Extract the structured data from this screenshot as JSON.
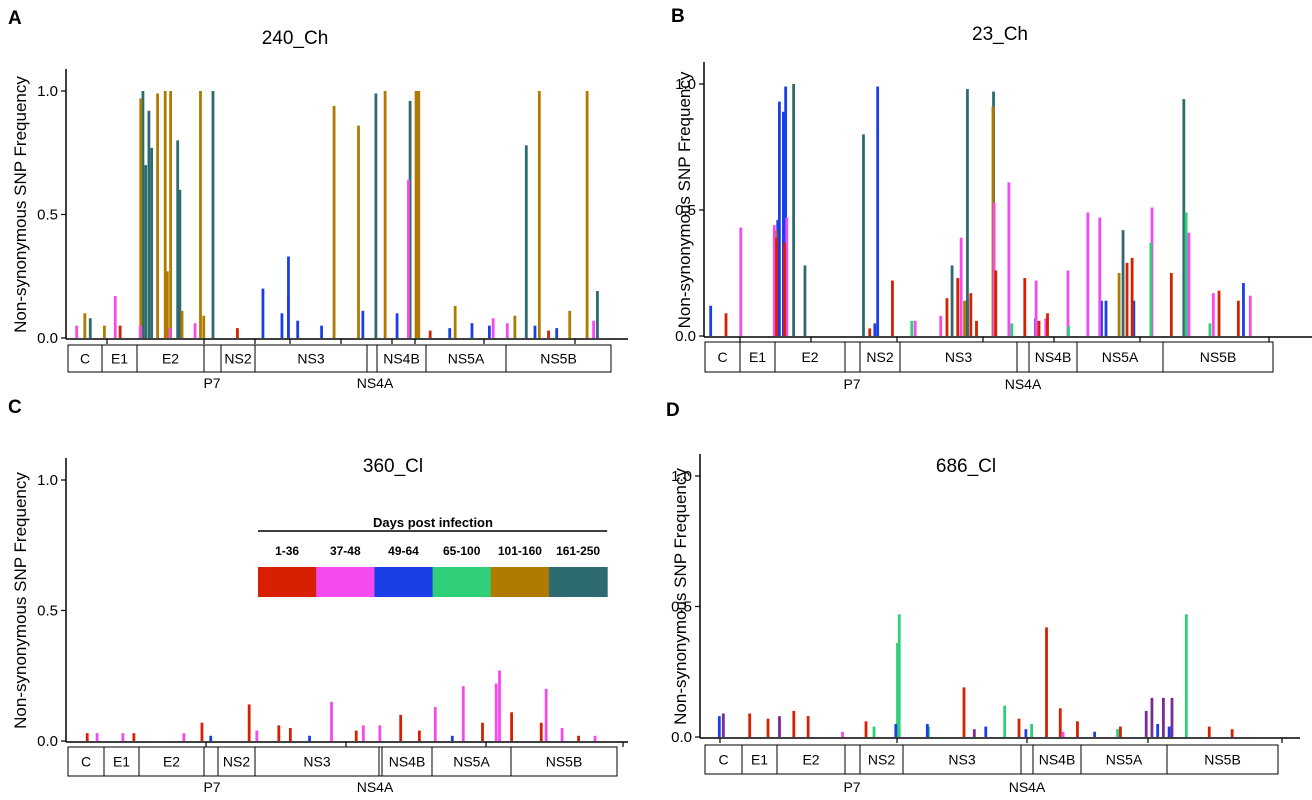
{
  "colors": {
    "d1_36": "#d62000",
    "d37_48": "#f54af0",
    "d49_64": "#1a3fe6",
    "d65_100": "#2fcf7a",
    "d101_160": "#b07a00",
    "d161_250": "#2d6b70",
    "purple": "#7b2a9a",
    "axis": "#000000"
  },
  "legend": {
    "title": "Days post infection",
    "items": [
      {
        "label": "1-36",
        "color": "#d62000"
      },
      {
        "label": "37-48",
        "color": "#f54af0"
      },
      {
        "label": "49-64",
        "color": "#1a3fe6"
      },
      {
        "label": "65-100",
        "color": "#2fcf7a"
      },
      {
        "label": "101-160",
        "color": "#b07a00"
      },
      {
        "label": "161-250",
        "color": "#2d6b70"
      }
    ]
  },
  "ylabel": "Non-synonymous SNP Frequency",
  "genes": [
    "C",
    "E1",
    "E2",
    "NS2",
    "NS3",
    "NS4B",
    "NS5A",
    "NS5B"
  ],
  "gene_sublabels": [
    "P7",
    "NS4A"
  ],
  "chart_data": [
    {
      "letter": "A",
      "title": "240_Ch",
      "type": "bar",
      "ylabel": "Non-synonymous SNP Frequency",
      "yticks": [
        "0.0",
        "0.5",
        "1.0"
      ],
      "ylim": [
        0,
        1.1
      ],
      "xlim": [
        0,
        100
      ],
      "genes": [
        "C",
        "E1",
        "E2",
        "NS2",
        "NS3",
        "NS4B",
        "NS5A",
        "NS5B"
      ],
      "gene_sublabels": [
        "P7",
        "NS4A"
      ],
      "series": [
        {
          "color": "d161_250",
          "points": [
            [
              13.8,
              1.0
            ],
            [
              14.3,
              0.7
            ],
            [
              14.9,
              0.92
            ],
            [
              15.4,
              0.77
            ],
            [
              20.2,
              0.8
            ],
            [
              20.6,
              0.6
            ],
            [
              26.7,
              1.0
            ],
            [
              56.7,
              0.99
            ],
            [
              63.0,
              0.96
            ],
            [
              84.4,
              0.78
            ],
            [
              97.5,
              0.19
            ],
            [
              4.1,
              0.08
            ]
          ]
        },
        {
          "color": "d101_160",
          "points": [
            [
              13.4,
              0.97
            ],
            [
              16.5,
              0.99
            ],
            [
              17.9,
              1.0
            ],
            [
              18.3,
              0.27
            ],
            [
              18.9,
              1.0
            ],
            [
              21.0,
              0.11
            ],
            [
              24.4,
              1.0
            ],
            [
              25.0,
              0.09
            ],
            [
              49.0,
              0.94
            ],
            [
              53.5,
              0.86
            ],
            [
              58.4,
              1.0
            ],
            [
              64.1,
              1.0
            ],
            [
              64.6,
              1.0
            ],
            [
              71.3,
              0.13
            ],
            [
              82.3,
              0.09
            ],
            [
              86.8,
              1.0
            ],
            [
              92.4,
              0.11
            ],
            [
              95.6,
              1.0
            ],
            [
              3.1,
              0.1
            ],
            [
              6.7,
              0.05
            ]
          ]
        },
        {
          "color": "d37_48",
          "points": [
            [
              8.7,
              0.17
            ],
            [
              13.3,
              0.05
            ],
            [
              18.8,
              0.04
            ],
            [
              23.4,
              0.06
            ],
            [
              40.6,
              0.17
            ],
            [
              62.7,
              0.64
            ],
            [
              78.3,
              0.08
            ],
            [
              80.9,
              0.06
            ],
            [
              1.6,
              0.05
            ],
            [
              96.8,
              0.07
            ]
          ]
        },
        {
          "color": "d49_64",
          "points": [
            [
              35.9,
              0.2
            ],
            [
              40.6,
              0.33
            ],
            [
              39.4,
              0.1
            ],
            [
              42.3,
              0.07
            ],
            [
              46.7,
              0.05
            ],
            [
              54.3,
              0.11
            ],
            [
              60.6,
              0.1
            ],
            [
              70.3,
              0.04
            ],
            [
              74.4,
              0.06
            ],
            [
              77.6,
              0.05
            ],
            [
              86.0,
              0.05
            ],
            [
              90.0,
              0.04
            ]
          ]
        },
        {
          "color": "d1_36",
          "points": [
            [
              9.6,
              0.05
            ],
            [
              31.2,
              0.04
            ],
            [
              66.7,
              0.03
            ],
            [
              88.5,
              0.03
            ]
          ]
        }
      ]
    },
    {
      "letter": "B",
      "title": "23_Ch",
      "type": "bar",
      "ylabel": "Non-synonymous SNP Frequency",
      "yticks": [
        "0.0",
        "0.5",
        "1.0"
      ],
      "ylim": [
        0,
        1.1
      ],
      "xlim": [
        0,
        100
      ],
      "genes": [
        "C",
        "E1",
        "E2",
        "NS2",
        "NS3",
        "NS4B",
        "NS5A",
        "NS5B"
      ],
      "gene_sublabels": [
        "P7",
        "NS4A"
      ],
      "series": [
        {
          "color": "d49_64",
          "points": [
            [
              1.0,
              0.12
            ],
            [
              13.1,
              0.93
            ],
            [
              13.8,
              0.89
            ],
            [
              14.2,
              0.99
            ],
            [
              12.8,
              0.46
            ],
            [
              30.4,
              0.99
            ],
            [
              29.9,
              0.05
            ],
            [
              46.2,
              0.15
            ],
            [
              58.2,
              0.07
            ],
            [
              69.8,
              0.14
            ],
            [
              70.6,
              0.14
            ],
            [
              75.5,
              0.14
            ],
            [
              94.8,
              0.21
            ]
          ]
        },
        {
          "color": "d161_250",
          "points": [
            [
              15.6,
              1.0
            ],
            [
              17.6,
              0.28
            ],
            [
              27.9,
              0.8
            ],
            [
              46.2,
              0.98
            ],
            [
              50.8,
              0.97
            ],
            [
              84.3,
              0.94
            ],
            [
              43.5,
              0.28
            ],
            [
              73.6,
              0.42
            ]
          ]
        },
        {
          "color": "d101_160",
          "points": [
            [
              12.5,
              0.42
            ],
            [
              50.7,
              0.91
            ],
            [
              45.7,
              0.14
            ],
            [
              72.9,
              0.25
            ]
          ]
        },
        {
          "color": "d37_48",
          "points": [
            [
              6.3,
              0.43
            ],
            [
              12.2,
              0.44
            ],
            [
              14.4,
              0.47
            ],
            [
              45.1,
              0.39
            ],
            [
              50.9,
              0.53
            ],
            [
              53.5,
              0.61
            ],
            [
              58.3,
              0.22
            ],
            [
              63.9,
              0.26
            ],
            [
              67.4,
              0.49
            ],
            [
              69.5,
              0.47
            ],
            [
              78.7,
              0.51
            ],
            [
              85.2,
              0.41
            ],
            [
              89.5,
              0.17
            ],
            [
              96.0,
              0.16
            ],
            [
              41.5,
              0.08
            ],
            [
              37.0,
              0.06
            ],
            [
              60.0,
              0.07
            ]
          ]
        },
        {
          "color": "d1_36",
          "points": [
            [
              3.7,
              0.09
            ],
            [
              12.6,
              0.39
            ],
            [
              14.0,
              0.37
            ],
            [
              33.0,
              0.22
            ],
            [
              42.6,
              0.15
            ],
            [
              44.5,
              0.23
            ],
            [
              46.8,
              0.17
            ],
            [
              51.2,
              0.26
            ],
            [
              56.3,
              0.23
            ],
            [
              58.8,
              0.06
            ],
            [
              60.3,
              0.09
            ],
            [
              74.3,
              0.29
            ],
            [
              75.2,
              0.31
            ],
            [
              82.1,
              0.25
            ],
            [
              90.5,
              0.18
            ],
            [
              93.9,
              0.14
            ],
            [
              47.8,
              0.06
            ],
            [
              29.0,
              0.03
            ]
          ]
        },
        {
          "color": "d65_100",
          "points": [
            [
              78.5,
              0.37
            ],
            [
              84.7,
              0.49
            ],
            [
              88.9,
              0.05
            ],
            [
              54.0,
              0.05
            ],
            [
              64.0,
              0.04
            ],
            [
              36.4,
              0.06
            ]
          ]
        }
      ]
    },
    {
      "letter": "C",
      "title": "360_Cl",
      "type": "bar",
      "ylabel": "Non-synonymous SNP Frequency",
      "yticks": [
        "0.0",
        "0.5",
        "1.0"
      ],
      "ylim": [
        0,
        1.1
      ],
      "xlim": [
        0,
        100
      ],
      "genes": [
        "C",
        "E1",
        "E2",
        "NS2",
        "NS3",
        "NS4B",
        "NS5A",
        "NS5B"
      ],
      "gene_sublabels": [
        "P7",
        "NS4A"
      ],
      "series": [
        {
          "color": "d37_48",
          "points": [
            [
              5.3,
              0.03
            ],
            [
              10.0,
              0.03
            ],
            [
              21.1,
              0.03
            ],
            [
              34.4,
              0.04
            ],
            [
              48.0,
              0.15
            ],
            [
              53.8,
              0.06
            ],
            [
              56.8,
              0.06
            ],
            [
              66.9,
              0.13
            ],
            [
              72.0,
              0.21
            ],
            [
              78.0,
              0.22
            ],
            [
              78.6,
              0.27
            ],
            [
              87.1,
              0.2
            ],
            [
              90.0,
              0.05
            ],
            [
              96.0,
              0.02
            ]
          ]
        },
        {
          "color": "d1_36",
          "points": [
            [
              3.5,
              0.03
            ],
            [
              12.0,
              0.03
            ],
            [
              24.4,
              0.07
            ],
            [
              33.0,
              0.14
            ],
            [
              38.4,
              0.06
            ],
            [
              40.5,
              0.05
            ],
            [
              52.5,
              0.04
            ],
            [
              60.6,
              0.1
            ],
            [
              64.0,
              0.04
            ],
            [
              75.5,
              0.07
            ],
            [
              80.8,
              0.11
            ],
            [
              86.2,
              0.07
            ],
            [
              93.0,
              0.02
            ]
          ]
        },
        {
          "color": "d49_64",
          "points": [
            [
              26.0,
              0.02
            ],
            [
              44.0,
              0.02
            ],
            [
              70.0,
              0.02
            ]
          ]
        }
      ]
    },
    {
      "letter": "D",
      "title": "686_Cl",
      "type": "bar",
      "ylabel": "Non-synonymous SNP Frequency",
      "yticks": [
        "0.0",
        "0.5",
        "1.0"
      ],
      "ylim": [
        0,
        1.1
      ],
      "xlim": [
        0,
        100
      ],
      "genes": [
        "C",
        "E1",
        "E2",
        "NS2",
        "NS3",
        "NS4B",
        "NS5A",
        "NS5B"
      ],
      "gene_sublabels": [
        "P7",
        "NS4A"
      ],
      "series": [
        {
          "color": "d65_100",
          "points": [
            [
              33.6,
              0.36
            ],
            [
              33.9,
              0.47
            ],
            [
              52.3,
              0.12
            ],
            [
              84.0,
              0.47
            ],
            [
              39.0,
              0.04
            ],
            [
              57.0,
              0.05
            ],
            [
              72.0,
              0.03
            ],
            [
              29.5,
              0.04
            ]
          ]
        },
        {
          "color": "d1_36",
          "points": [
            [
              7.8,
              0.09
            ],
            [
              11.0,
              0.07
            ],
            [
              15.5,
              0.1
            ],
            [
              18.0,
              0.08
            ],
            [
              28.1,
              0.06
            ],
            [
              45.2,
              0.19
            ],
            [
              54.8,
              0.07
            ],
            [
              59.6,
              0.42
            ],
            [
              62.0,
              0.11
            ],
            [
              65.0,
              0.06
            ],
            [
              72.5,
              0.04
            ],
            [
              88.0,
              0.04
            ],
            [
              92.0,
              0.03
            ]
          ]
        },
        {
          "color": "purple",
          "points": [
            [
              3.2,
              0.09
            ],
            [
              13.0,
              0.08
            ],
            [
              77.0,
              0.1
            ],
            [
              78.0,
              0.15
            ],
            [
              80.0,
              0.15
            ],
            [
              81.5,
              0.15
            ],
            [
              47.0,
              0.03
            ]
          ]
        },
        {
          "color": "d49_64",
          "points": [
            [
              2.5,
              0.08
            ],
            [
              33.3,
              0.05
            ],
            [
              38.8,
              0.05
            ],
            [
              49.0,
              0.04
            ],
            [
              56.0,
              0.03
            ],
            [
              79.0,
              0.05
            ],
            [
              81.0,
              0.04
            ],
            [
              68.0,
              0.02
            ]
          ]
        },
        {
          "color": "d37_48",
          "points": [
            [
              24.0,
              0.02
            ],
            [
              62.5,
              0.02
            ]
          ]
        }
      ]
    }
  ]
}
